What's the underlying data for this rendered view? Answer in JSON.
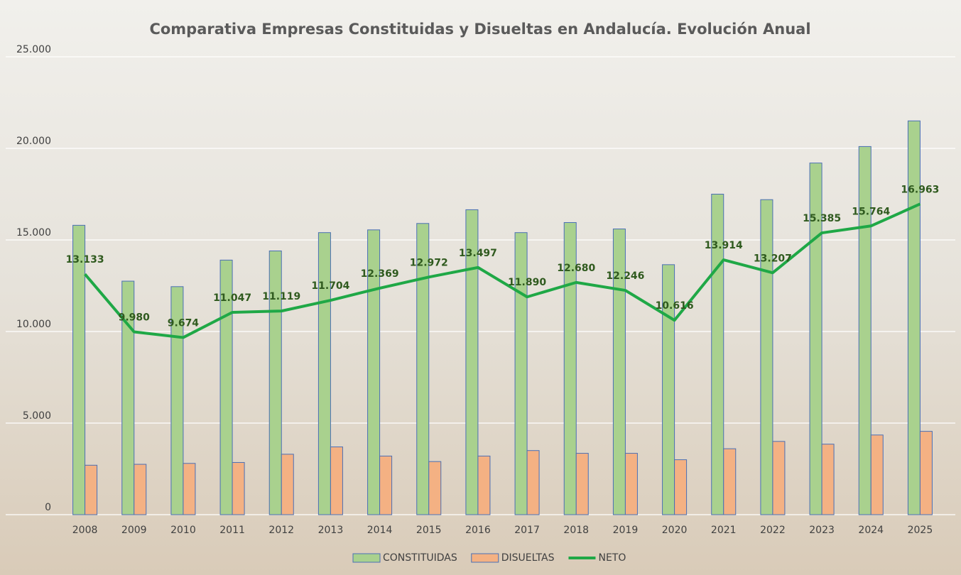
{
  "chart_data": {
    "type": "bar",
    "title": "Comparativa Empresas Constituidas y Disueltas en Andalucía. Evolución Anual",
    "categories": [
      "2008",
      "2009",
      "2010",
      "2011",
      "2012",
      "2013",
      "2014",
      "2015",
      "2016",
      "2017",
      "2018",
      "2019",
      "2020",
      "2021",
      "2022",
      "2023",
      "2024",
      "2025"
    ],
    "series": [
      {
        "name": "CONSTITUIDAS",
        "type": "bar",
        "color": "#a9d18e",
        "values": [
          15800,
          12750,
          12450,
          13900,
          14400,
          15400,
          15550,
          15900,
          16650,
          15400,
          15950,
          15600,
          13650,
          17500,
          17200,
          19200,
          20100,
          21500
        ]
      },
      {
        "name": "DISUELTAS",
        "type": "bar",
        "color": "#f4b183",
        "values": [
          2700,
          2750,
          2800,
          2850,
          3300,
          3700,
          3200,
          2900,
          3200,
          3500,
          3350,
          3350,
          3000,
          3600,
          4000,
          3850,
          4350,
          4550
        ]
      },
      {
        "name": "NETO",
        "type": "line",
        "color": "#1fa846",
        "values": [
          13133,
          9980,
          9674,
          11047,
          11119,
          11704,
          12369,
          12972,
          13497,
          11890,
          12680,
          12246,
          10616,
          13914,
          13207,
          15385,
          15764,
          16963
        ],
        "value_labels": [
          "13.133",
          "9.980",
          "9.674",
          "11.047",
          "11.119",
          "11.704",
          "12.369",
          "12.972",
          "13.497",
          "11.890",
          "12.680",
          "12.246",
          "10.616",
          "13.914",
          "13.207",
          "15.385",
          "15.764",
          "16.963"
        ]
      }
    ],
    "ylim": [
      0,
      25000
    ],
    "yticks": [
      0,
      {
        "value": 5000,
        "label": "5.000"
      },
      {
        "value": 10000,
        "label": "10.000"
      },
      {
        "value": 15000,
        "label": "15.000"
      },
      {
        "value": 20000,
        "label": "20.000"
      },
      {
        "value": 25000,
        "label": "25.000"
      }
    ],
    "grid": true,
    "legend": "bottom"
  }
}
